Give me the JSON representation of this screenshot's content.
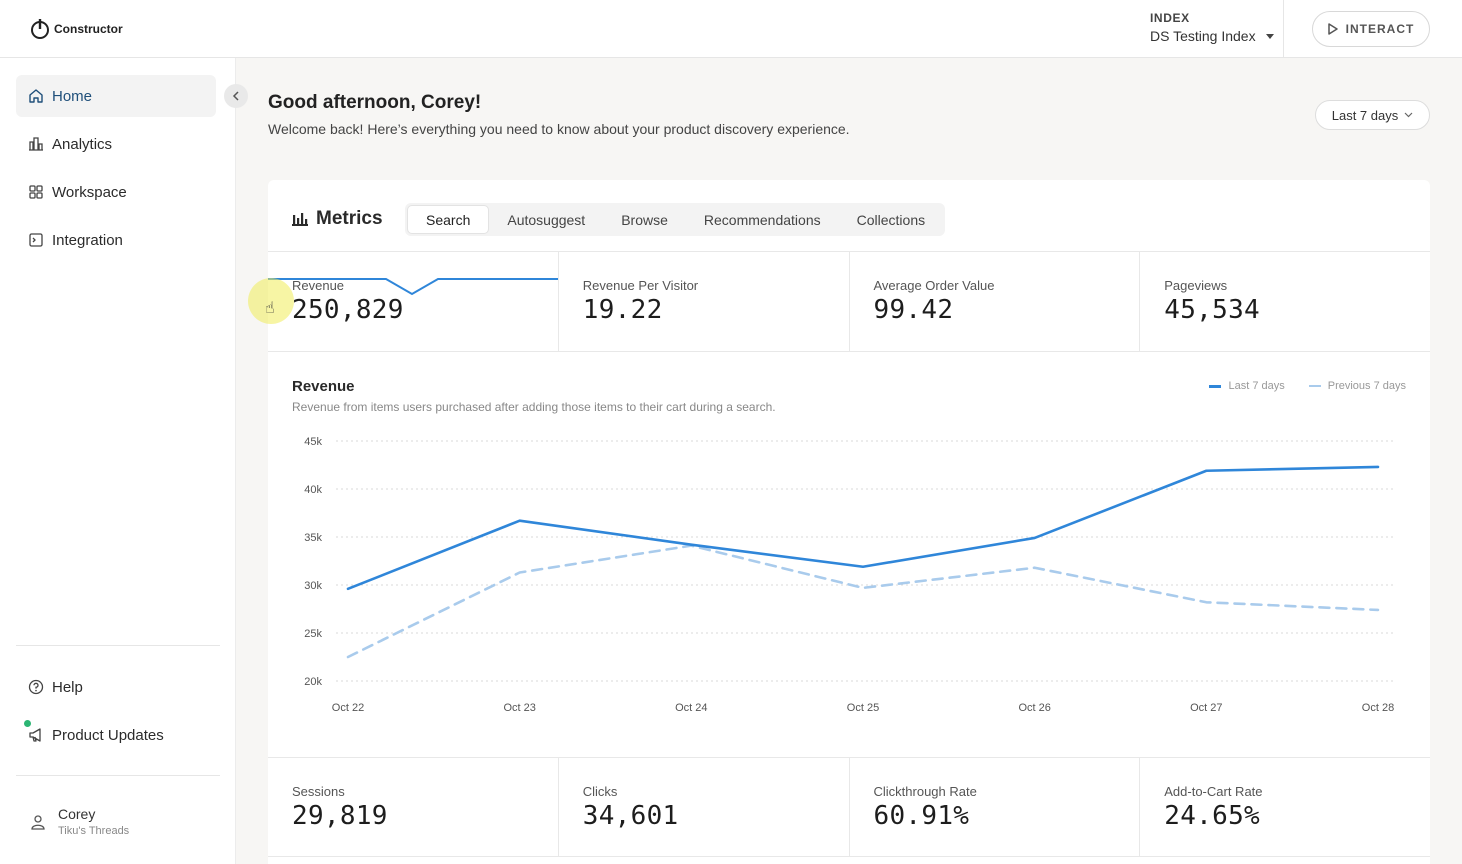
{
  "app": {
    "logo_text": "Constructor"
  },
  "topbar": {
    "index_label": "INDEX",
    "index_value": "DS Testing Index",
    "interact_label": "INTERACT"
  },
  "sidebar": {
    "items": [
      {
        "label": "Home",
        "icon": "home-icon",
        "active": true
      },
      {
        "label": "Analytics",
        "icon": "analytics-icon",
        "active": false
      },
      {
        "label": "Workspace",
        "icon": "workspace-icon",
        "active": false
      },
      {
        "label": "Integration",
        "icon": "integration-icon",
        "active": false
      }
    ],
    "bottom_items": [
      {
        "label": "Help",
        "icon": "help-icon"
      },
      {
        "label": "Product Updates",
        "icon": "megaphone-icon"
      }
    ],
    "user": {
      "name": "Corey",
      "org": "Tiku's Threads"
    }
  },
  "main": {
    "greeting": "Good afternoon, Corey!",
    "welcome": "Welcome back! Here’s everything you need to know about your product discovery experience.",
    "range_label": "Last 7 days"
  },
  "metrics": {
    "title": "Metrics",
    "tabs": [
      "Search",
      "Autosuggest",
      "Browse",
      "Recommendations",
      "Collections"
    ],
    "active_tab": "Search",
    "top_kpis": [
      {
        "label": "Revenue",
        "value": "250,829"
      },
      {
        "label": "Revenue Per Visitor",
        "value": "19.22"
      },
      {
        "label": "Average Order Value",
        "value": "99.42"
      },
      {
        "label": "Pageviews",
        "value": "45,534"
      }
    ],
    "bottom_kpis": [
      {
        "label": "Sessions",
        "value": "29,819"
      },
      {
        "label": "Clicks",
        "value": "34,601"
      },
      {
        "label": "Clickthrough Rate",
        "value": "60.91%"
      },
      {
        "label": "Add-to-Cart Rate",
        "value": "24.65%"
      }
    ]
  },
  "chart_data": {
    "type": "line",
    "title": "Revenue",
    "subtitle": "Revenue from items users purchased after adding those items to their cart during a search.",
    "categories": [
      "Oct 22",
      "Oct 23",
      "Oct 24",
      "Oct 25",
      "Oct 26",
      "Oct 27",
      "Oct 28"
    ],
    "y_ticks": [
      "45k",
      "40k",
      "35k",
      "30k",
      "25k",
      "20k"
    ],
    "ylim": [
      20000,
      45000
    ],
    "series": [
      {
        "name": "Last 7 days",
        "style": "solid",
        "color": "#2f86d9",
        "values": [
          29600,
          36700,
          34200,
          31900,
          34900,
          41900,
          42300
        ]
      },
      {
        "name": "Previous 7 days",
        "style": "dashed",
        "color": "#a9cbec",
        "values": [
          22500,
          31300,
          34100,
          29700,
          31800,
          28200,
          27400
        ]
      }
    ],
    "legend_position": "top-right",
    "grid": true
  },
  "colors": {
    "accent": "#2f86d9",
    "accent_light": "#a9cbec",
    "status_dot": "#2bb573"
  }
}
